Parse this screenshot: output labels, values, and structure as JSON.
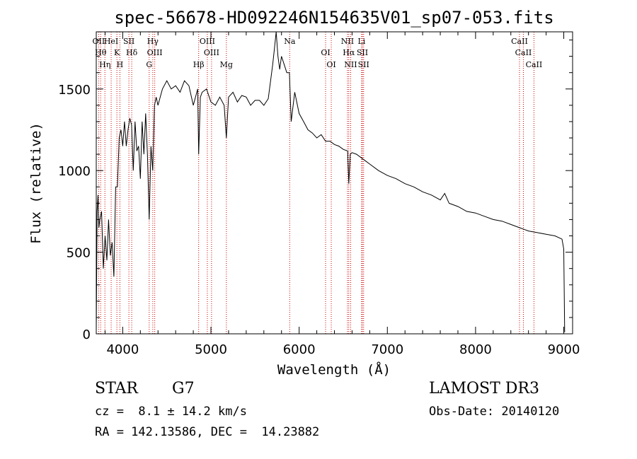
{
  "chart_data": {
    "type": "line",
    "title": "spec-56678-HD092246N154635V01_sp07-053.fits",
    "xlabel": "Wavelength (Å)",
    "ylabel": "Flux (relative)",
    "xlim": [
      3700,
      9100
    ],
    "ylim": [
      0,
      1850
    ],
    "xticks": [
      4000,
      5000,
      6000,
      7000,
      8000,
      9000
    ],
    "xtick_labels": [
      "4000",
      "5000",
      "6000",
      "7000",
      "8000",
      "9000"
    ],
    "yticks": [
      0,
      500,
      1000,
      1500
    ],
    "ytick_labels": [
      "0",
      "500",
      "1000",
      "1500"
    ],
    "grid": false,
    "series": [
      {
        "x": [
          3700,
          3710,
          3720,
          3730,
          3740,
          3760,
          3780,
          3800,
          3820,
          3840,
          3860,
          3880,
          3900,
          3920,
          3940,
          3960,
          3980,
          4000,
          4020,
          4040,
          4060,
          4080,
          4100,
          4120,
          4140,
          4160,
          4180,
          4200,
          4220,
          4240,
          4260,
          4280,
          4300,
          4320,
          4340,
          4360,
          4380,
          4400,
          4450,
          4500,
          4550,
          4600,
          4650,
          4700,
          4750,
          4800,
          4850,
          4861,
          4880,
          4900,
          4950,
          5000,
          5050,
          5100,
          5150,
          5175,
          5200,
          5250,
          5300,
          5350,
          5400,
          5450,
          5500,
          5550,
          5600,
          5650,
          5700,
          5720,
          5740,
          5760,
          5780,
          5800,
          5830,
          5860,
          5890,
          5910,
          5950,
          6000,
          6050,
          6100,
          6150,
          6200,
          6250,
          6300,
          6350,
          6400,
          6450,
          6500,
          6550,
          6563,
          6580,
          6600,
          6650,
          6700,
          6750,
          6800,
          6900,
          7000,
          7100,
          7200,
          7300,
          7400,
          7500,
          7600,
          7650,
          7700,
          7800,
          7900,
          8000,
          8100,
          8200,
          8300,
          8400,
          8500,
          8550,
          8600,
          8700,
          8800,
          8900,
          8980,
          9000,
          9010
        ],
        "y": [
          20,
          750,
          850,
          650,
          700,
          750,
          400,
          600,
          450,
          700,
          480,
          560,
          350,
          900,
          900,
          1200,
          1250,
          1150,
          1300,
          1150,
          1250,
          1320,
          1280,
          1000,
          1300,
          1120,
          1150,
          950,
          1300,
          1100,
          1350,
          1100,
          700,
          1150,
          1000,
          1400,
          1450,
          1400,
          1500,
          1550,
          1500,
          1520,
          1480,
          1550,
          1520,
          1400,
          1500,
          1100,
          1450,
          1480,
          1500,
          1420,
          1400,
          1450,
          1400,
          1200,
          1450,
          1480,
          1420,
          1460,
          1450,
          1400,
          1430,
          1430,
          1400,
          1440,
          1650,
          1750,
          1850,
          1700,
          1620,
          1700,
          1650,
          1600,
          1600,
          1300,
          1480,
          1350,
          1300,
          1250,
          1230,
          1200,
          1220,
          1180,
          1180,
          1160,
          1150,
          1130,
          1120,
          920,
          1100,
          1110,
          1100,
          1080,
          1060,
          1040,
          1000,
          970,
          950,
          920,
          900,
          870,
          850,
          820,
          860,
          800,
          780,
          750,
          740,
          720,
          700,
          690,
          670,
          650,
          640,
          630,
          620,
          610,
          600,
          580,
          520,
          10
        ]
      }
    ],
    "line_markers": [
      {
        "x": 3727,
        "label": "OII"
      },
      {
        "x": 3750,
        "label": "Hθ"
      },
      {
        "x": 3798,
        "label": "Hη"
      },
      {
        "x": 3869,
        "label": "HeI"
      },
      {
        "x": 3934,
        "label": "K"
      },
      {
        "x": 3968,
        "label": "H"
      },
      {
        "x": 4070,
        "label": "SII"
      },
      {
        "x": 4102,
        "label": "Hδ"
      },
      {
        "x": 4300,
        "label": "G"
      },
      {
        "x": 4341,
        "label": "Hγ"
      },
      {
        "x": 4363,
        "label": "OIII"
      },
      {
        "x": 4861,
        "label": "Hβ"
      },
      {
        "x": 4959,
        "label": "OIII"
      },
      {
        "x": 5007,
        "label": "OIII"
      },
      {
        "x": 5175,
        "label": "Mg"
      },
      {
        "x": 5893,
        "label": "Na"
      },
      {
        "x": 6300,
        "label": "OI"
      },
      {
        "x": 6364,
        "label": "OI"
      },
      {
        "x": 6548,
        "label": "NII"
      },
      {
        "x": 6563,
        "label": "Hα"
      },
      {
        "x": 6584,
        "label": "NII"
      },
      {
        "x": 6708,
        "label": "Li"
      },
      {
        "x": 6717,
        "label": "SII"
      },
      {
        "x": 6731,
        "label": "SII"
      },
      {
        "x": 8498,
        "label": "CaII"
      },
      {
        "x": 8542,
        "label": "CaII"
      },
      {
        "x": 8662,
        "label": "CaII"
      }
    ]
  },
  "info": {
    "object_class": "STAR",
    "subclass": "G7",
    "redshift": "cz =  8.1 ± 14.2 km/s",
    "coords": "RA = 142.13586, DEC =  14.23882",
    "survey": "LAMOST DR3",
    "obs_date": "Obs-Date: 20140120"
  },
  "colors": {
    "line": "#000000",
    "marker": "#cc0000"
  }
}
